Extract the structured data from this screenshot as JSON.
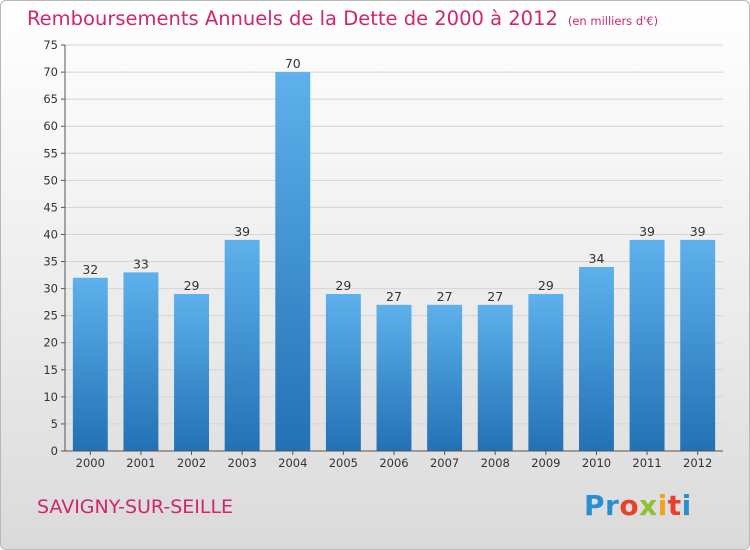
{
  "header": {
    "title": "Remboursements Annuels de la Dette de 2000 à 2012",
    "unit": "(en milliers d'€)"
  },
  "footer": {
    "commune": "SAVIGNY-SUR-SEILLE"
  },
  "logo": {
    "text": "Proxiti",
    "letters": [
      "P",
      "r",
      "o",
      "x",
      "i",
      "t",
      "i"
    ],
    "letter_colors": [
      "#2a8fd0",
      "#2a8fd0",
      "#e8412b",
      "#8cc12f",
      "#f2a21c",
      "#e8412b",
      "#2a8fd0"
    ]
  },
  "colors": {
    "title": "#d1256e",
    "bar_top": "#5eb1ec",
    "bar_bottom": "#2271b5",
    "grid": "#d4d4d4",
    "axis": "#555555",
    "text": "#333333"
  },
  "chart_data": {
    "type": "bar",
    "categories": [
      "2000",
      "2001",
      "2002",
      "2003",
      "2004",
      "2005",
      "2006",
      "2007",
      "2008",
      "2009",
      "2010",
      "2011",
      "2012"
    ],
    "values": [
      32,
      33,
      29,
      39,
      70,
      29,
      27,
      27,
      27,
      29,
      34,
      39,
      39
    ],
    "title": "Remboursements Annuels de la Dette de 2000 à 2012",
    "xlabel": "",
    "ylabel": "",
    "ylim": [
      0,
      75
    ],
    "yticks": [
      0,
      5,
      10,
      15,
      20,
      25,
      30,
      35,
      40,
      45,
      50,
      55,
      60,
      65,
      70,
      75
    ],
    "grid": true,
    "data_labels": true
  }
}
